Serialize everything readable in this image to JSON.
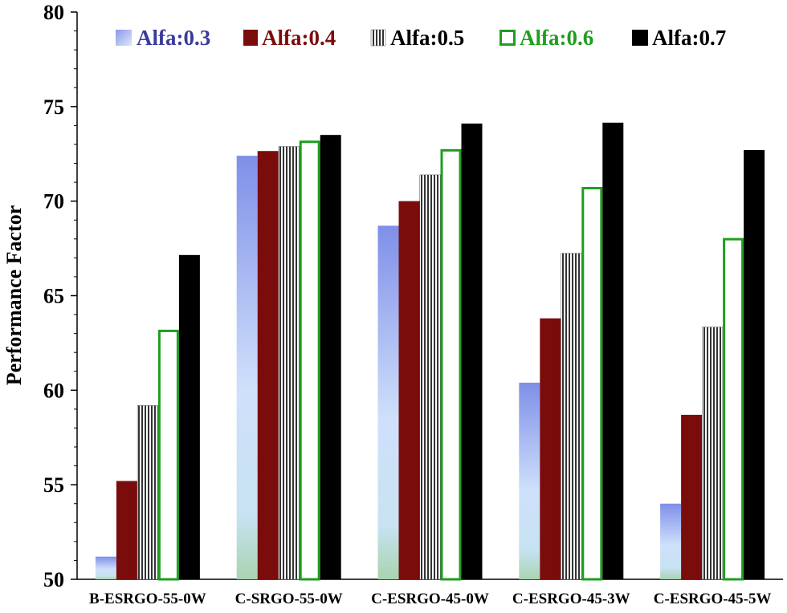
{
  "chart_data": {
    "type": "bar",
    "title": "",
    "xlabel": "",
    "ylabel": "Performance Factor",
    "ylim": [
      50,
      80
    ],
    "yticks": [
      50,
      55,
      60,
      65,
      70,
      75,
      80
    ],
    "grid": false,
    "legend_position": "top",
    "categories": [
      "B-ESRGO-55-0W",
      "C-SRGO-55-0W",
      "C-ESRGO-45-0W",
      "C-ESRGO-45-3W",
      "C-ESRGO-45-5W"
    ],
    "series": [
      {
        "name": "Alfa:0.3",
        "legend_color": "#3b3b9a",
        "values": [
          51.2,
          72.4,
          68.7,
          60.4,
          54.0
        ]
      },
      {
        "name": "Alfa:0.4",
        "legend_color": "#7b0c0c",
        "values": [
          55.2,
          72.65,
          70.0,
          63.8,
          58.7
        ]
      },
      {
        "name": "Alfa:0.5",
        "legend_color": "#000000",
        "values": [
          59.2,
          72.9,
          71.4,
          67.25,
          63.35
        ]
      },
      {
        "name": "Alfa:0.6",
        "legend_color": "#1f9e1f",
        "values": [
          63.2,
          73.2,
          72.75,
          70.75,
          68.05
        ]
      },
      {
        "name": "Alfa:0.7",
        "legend_color": "#000000",
        "values": [
          67.15,
          73.5,
          74.1,
          74.15,
          72.7
        ]
      }
    ]
  }
}
